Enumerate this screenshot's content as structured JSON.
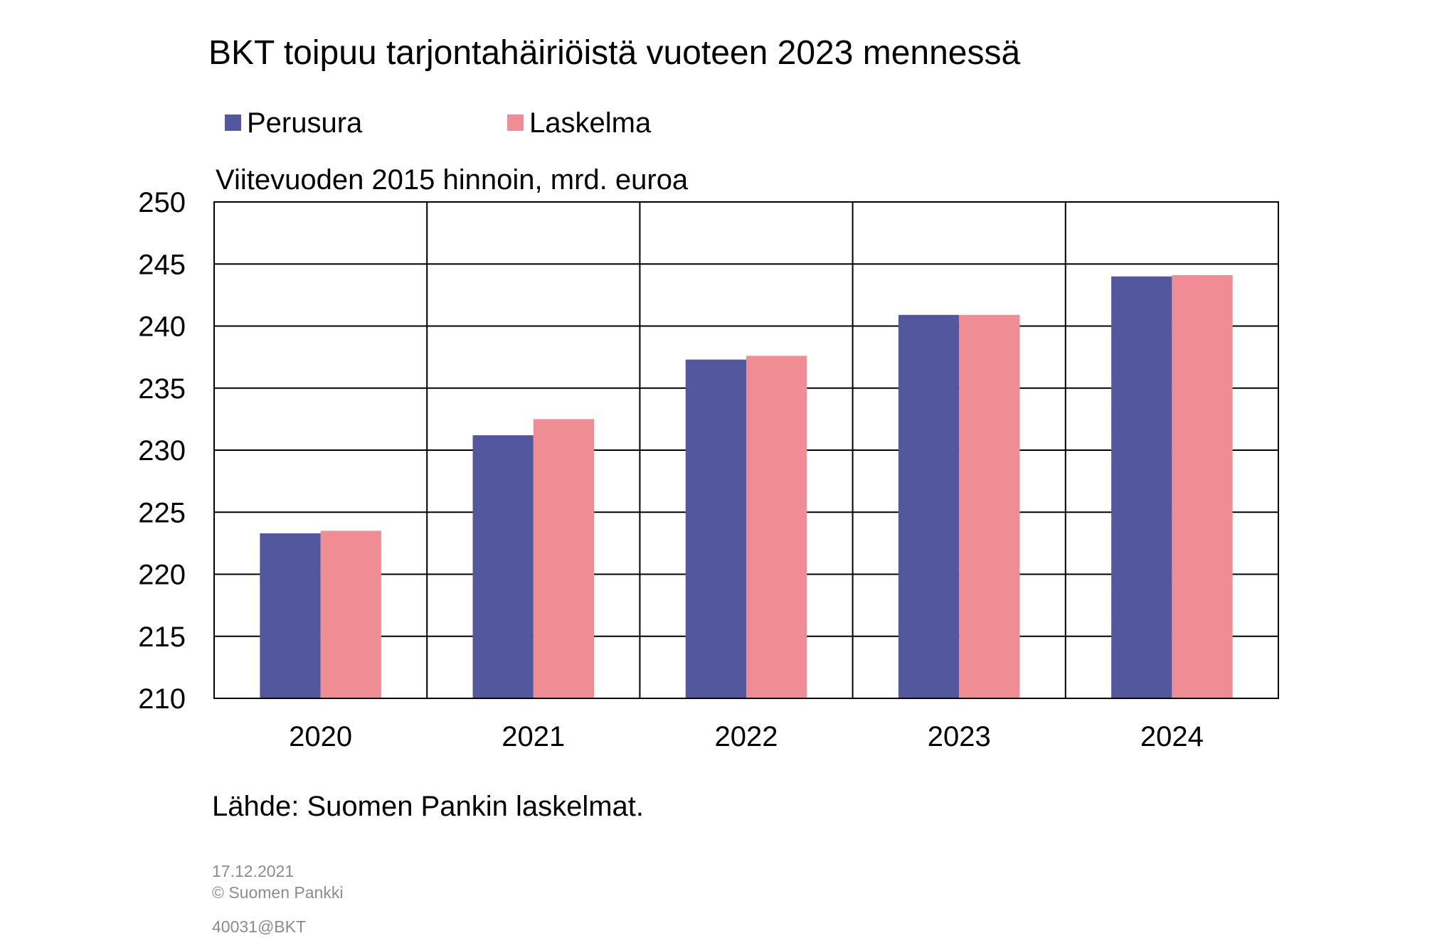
{
  "chart_data": {
    "type": "bar",
    "title": "BKT toipuu tarjontahäiriöistä vuoteen 2023 mennessä",
    "ylabel": "Viitevuoden 2015 hinnoin, mrd. euroa",
    "xlabel": "",
    "categories": [
      "2020",
      "2021",
      "2022",
      "2023",
      "2024"
    ],
    "series": [
      {
        "name": "Perusura",
        "color": "#52579e",
        "values": [
          223.3,
          231.2,
          237.3,
          240.9,
          244.0
        ]
      },
      {
        "name": "Laskelma",
        "color": "#f08c93",
        "values": [
          223.5,
          232.5,
          237.6,
          240.9,
          244.1
        ]
      }
    ],
    "ylim": [
      210,
      250
    ],
    "yticks": [
      "210",
      "215",
      "220",
      "225",
      "230",
      "235",
      "240",
      "245",
      "250"
    ],
    "grid": true,
    "legend_position": "top-left"
  },
  "source": "Lähde: Suomen Pankin laskelmat.",
  "footer": {
    "date": "17.12.2021",
    "copyright": "© Suomen Pankki",
    "code": "40031@BKT"
  }
}
